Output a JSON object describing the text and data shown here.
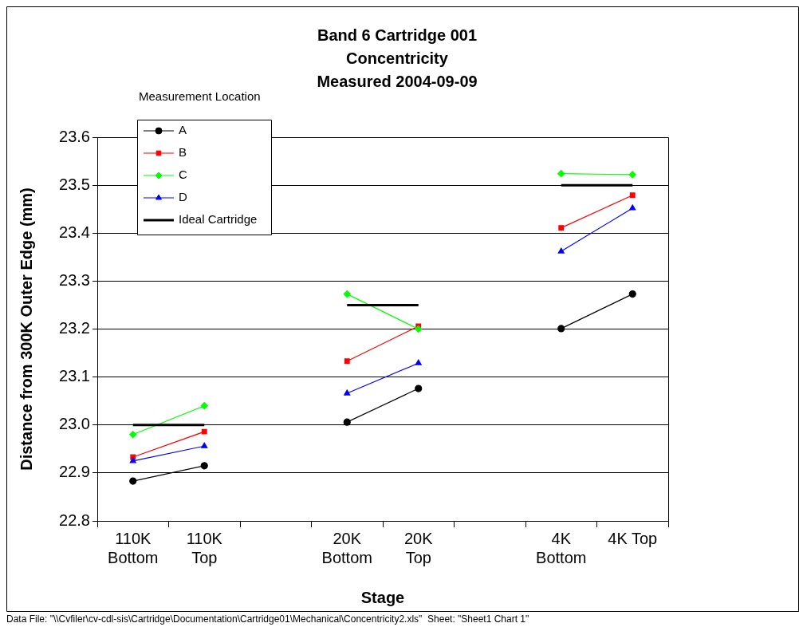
{
  "chart_data": {
    "type": "line",
    "title": "Band 6 Cartridge 001\nConcentricity\nMeasured 2004-09-09",
    "xlabel": "Stage",
    "ylabel": "Distance from 300K Outer Edge (mm)",
    "legend_title": "Measurement Location",
    "legend": "top left",
    "grid": "y",
    "categories": [
      "110K\nBottom",
      "110K\nTop",
      null,
      "20K\nBottom",
      "20K\nTop",
      null,
      "4K\nBottom",
      "4K Top"
    ],
    "ylim": [
      22.8,
      23.6
    ],
    "yticks": [
      {
        "value": 22.8,
        "label": "22.8"
      },
      {
        "value": 22.9,
        "label": "22.9"
      },
      {
        "value": 23,
        "label": "23.0"
      },
      {
        "value": 23.1,
        "label": "23.1"
      },
      {
        "value": 23.2,
        "label": "23.2"
      },
      {
        "value": 23.3,
        "label": "23.3"
      },
      {
        "value": 23.4,
        "label": "23.4"
      },
      {
        "value": 23.5,
        "label": "23.5"
      },
      {
        "value": 23.6,
        "label": "23.6"
      }
    ],
    "series": [
      {
        "name": "A",
        "color": "#000000",
        "marker": "circle",
        "values": [
          22.883,
          22.915,
          null,
          23.006,
          23.076,
          null,
          23.201,
          23.273
        ]
      },
      {
        "name": "B",
        "color": "#ff0000",
        "marker": "square",
        "values": [
          22.933,
          22.986,
          null,
          23.133,
          23.206,
          null,
          23.411,
          23.479
        ]
      },
      {
        "name": "C",
        "color": "#00ff00",
        "marker": "diamond",
        "values": [
          22.98,
          23.04,
          null,
          23.273,
          23.2,
          null,
          23.524,
          23.522
        ]
      },
      {
        "name": "D",
        "color": "#0000ff",
        "marker": "triangle",
        "values": [
          22.925,
          22.956,
          null,
          23.066,
          23.129,
          null,
          23.362,
          23.452
        ]
      },
      {
        "name": "Ideal Cartridge",
        "color": "#000000",
        "marker": "none",
        "values": [
          23.0,
          23.0,
          null,
          23.25,
          23.25,
          null,
          23.5,
          23.5
        ]
      }
    ],
    "annotations": [
      "Data File: \"\\\\Cvfiler\\cv-cdl-sis\\Cartridge\\Documentation\\Cartridge01\\Mechanical\\Concentricity2.xls\"  Sheet: \"Sheet1 Chart 1\""
    ]
  }
}
